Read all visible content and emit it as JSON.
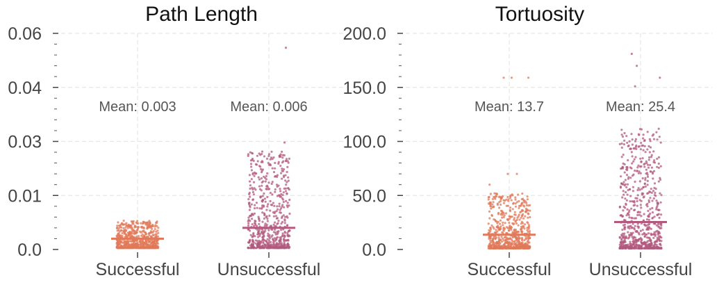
{
  "chart_data": [
    {
      "type": "scatter",
      "subtype": "strip",
      "title": "Path Length",
      "categories": [
        "Successful",
        "Unsuccessful"
      ],
      "ylim": [
        0,
        0.06
      ],
      "yticks": [
        0,
        0.015,
        0.03,
        0.045,
        0.06
      ],
      "ytick_labels": [
        "0.0",
        "0.01",
        "0.03",
        "0.04",
        "0.06"
      ],
      "grid": true,
      "series": [
        {
          "name": "Successful",
          "color": "#e07a5a",
          "mean": 0.003,
          "mean_label": "Mean: 0.003",
          "n": 700,
          "min": 0.0004,
          "max": 0.008,
          "outliers": []
        },
        {
          "name": "Unsuccessful",
          "color": "#b25a7e",
          "mean": 0.006,
          "mean_label": "Mean: 0.006",
          "n": 650,
          "min": 0.0004,
          "max": 0.0275,
          "outliers": [
            0.0297,
            0.056
          ]
        }
      ]
    },
    {
      "type": "scatter",
      "subtype": "strip",
      "title": "Tortuosity",
      "categories": [
        "Successful",
        "Unsuccessful"
      ],
      "ylim": [
        0,
        200
      ],
      "yticks": [
        0,
        50,
        100,
        150,
        200
      ],
      "ytick_labels": [
        "0.0",
        "50.0",
        "100.0",
        "150.0",
        "200.0"
      ],
      "grid": true,
      "series": [
        {
          "name": "Successful",
          "color": "#e07a5a",
          "mean": 13.7,
          "mean_label": "Mean: 13.7",
          "n": 700,
          "min": 1,
          "max": 52,
          "outliers": [
            60,
            70,
            70,
            159,
            159,
            159
          ]
        },
        {
          "name": "Unsuccessful",
          "color": "#b25a7e",
          "mean": 25.4,
          "mean_label": "Mean: 25.4",
          "n": 700,
          "min": 1,
          "max": 112,
          "outliers": [
            151,
            159,
            170,
            181
          ]
        }
      ]
    }
  ]
}
